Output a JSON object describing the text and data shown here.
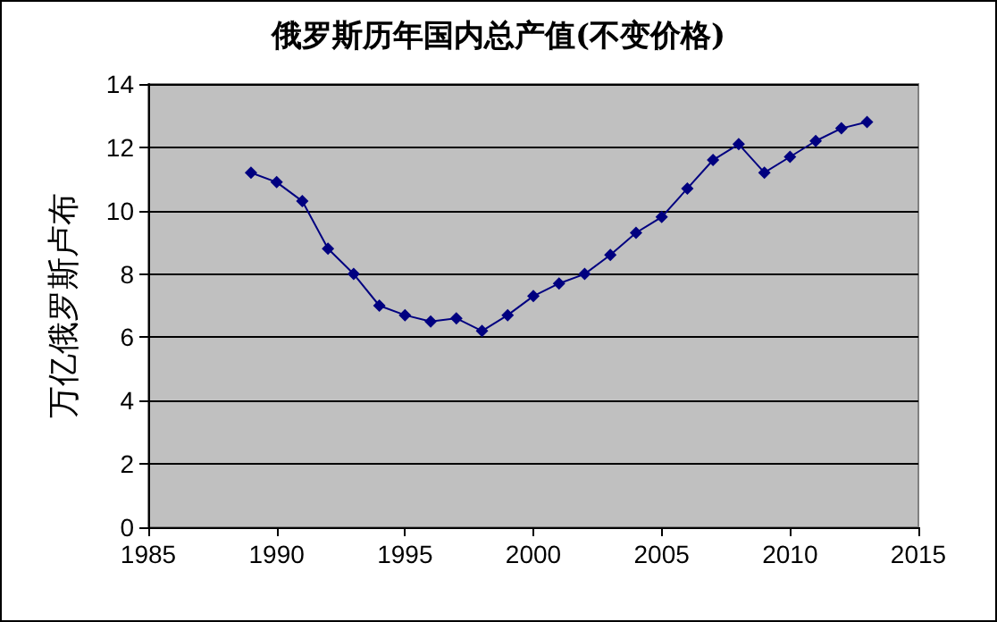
{
  "chart_data": {
    "type": "line",
    "title": "俄罗斯历年国内总产值(不变价格)",
    "ylabel": "万亿俄罗斯卢布",
    "x": [
      1989,
      1990,
      1991,
      1992,
      1993,
      1994,
      1995,
      1996,
      1997,
      1998,
      1999,
      2000,
      2001,
      2002,
      2003,
      2004,
      2005,
      2006,
      2007,
      2008,
      2009,
      2010,
      2011,
      2012,
      2013
    ],
    "series": [
      {
        "color": "#000080",
        "values": [
          11.2,
          10.9,
          10.3,
          8.8,
          8.0,
          7.0,
          6.7,
          6.5,
          6.6,
          6.2,
          6.7,
          7.3,
          7.7,
          8.0,
          8.6,
          9.3,
          9.8,
          10.7,
          11.6,
          12.1,
          11.2,
          11.7,
          12.2,
          12.6,
          12.8
        ]
      }
    ],
    "xlim": [
      1985,
      2015
    ],
    "xticks": [
      1985,
      1990,
      1995,
      2000,
      2005,
      2010,
      2015
    ],
    "ylim": [
      0,
      14
    ],
    "yticks": [
      0,
      2,
      4,
      6,
      8,
      10,
      12,
      14
    ],
    "grid": "y",
    "marker": "diamond",
    "line_style": "solid"
  }
}
